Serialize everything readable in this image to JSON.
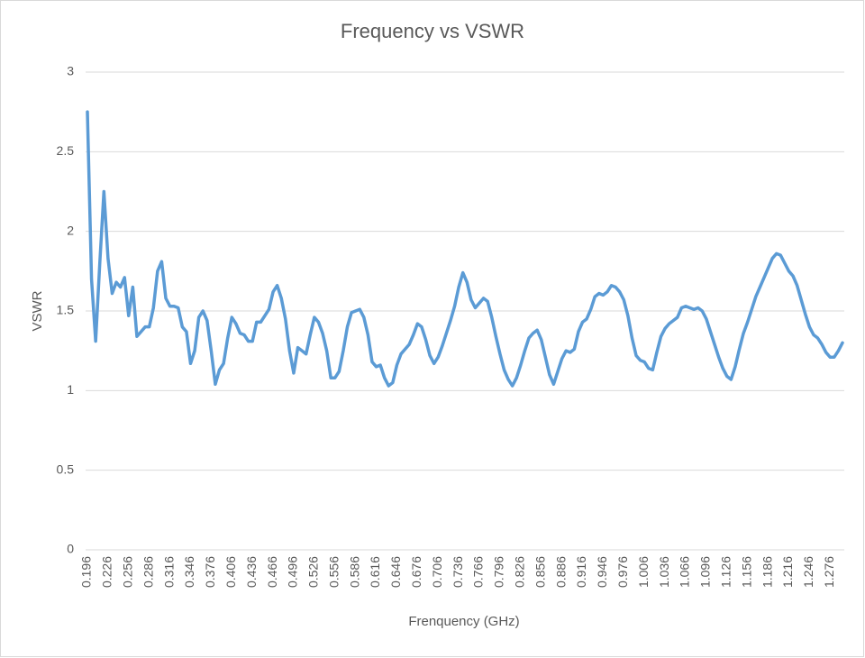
{
  "chart_data": {
    "type": "line",
    "title": "Frequency vs VSWR",
    "x_label": "Frenquency  (GHz)",
    "y_label": "VSWR",
    "categories": [
      "0.196",
      null,
      null,
      null,
      null,
      "0.226",
      null,
      null,
      null,
      null,
      "0.256",
      null,
      null,
      null,
      null,
      "0.286",
      null,
      null,
      null,
      null,
      "0.316",
      null,
      null,
      null,
      null,
      "0.346",
      null,
      null,
      null,
      null,
      "0.376",
      null,
      null,
      null,
      null,
      "0.406",
      null,
      null,
      null,
      null,
      "0.436",
      null,
      null,
      null,
      null,
      "0.466",
      null,
      null,
      null,
      null,
      "0.496",
      null,
      null,
      null,
      null,
      "0.526",
      null,
      null,
      null,
      null,
      "0.556",
      null,
      null,
      null,
      null,
      "0.586",
      null,
      null,
      null,
      null,
      "0.616",
      null,
      null,
      null,
      null,
      "0.646",
      null,
      null,
      null,
      null,
      "0.676",
      null,
      null,
      null,
      null,
      "0.706",
      null,
      null,
      null,
      null,
      "0.736",
      null,
      null,
      null,
      null,
      "0.766",
      null,
      null,
      null,
      null,
      "0.796",
      null,
      null,
      null,
      null,
      "0.826",
      null,
      null,
      null,
      null,
      "0.856",
      null,
      null,
      null,
      null,
      "0.886",
      null,
      null,
      null,
      null,
      "0.916",
      null,
      null,
      null,
      null,
      "0.946",
      null,
      null,
      null,
      null,
      "0.976",
      null,
      null,
      null,
      null,
      "1.006",
      null,
      null,
      null,
      null,
      "1.036",
      null,
      null,
      null,
      null,
      "1.066",
      null,
      null,
      null,
      null,
      "1.096",
      null,
      null,
      null,
      null,
      "1.126",
      null,
      null,
      null,
      null,
      "1.156",
      null,
      null,
      null,
      null,
      "1.186",
      null,
      null,
      null,
      null,
      "1.216",
      null,
      null,
      null,
      null,
      "1.246",
      null,
      null,
      null,
      null,
      "1.276",
      null,
      null,
      null
    ],
    "series": [
      {
        "name": "VSWR",
        "color": "#5b9bd5",
        "values": [
          2.75,
          1.7,
          1.31,
          1.8,
          2.25,
          1.83,
          1.61,
          1.68,
          1.65,
          1.71,
          1.47,
          1.65,
          1.34,
          1.37,
          1.4,
          1.4,
          1.52,
          1.75,
          1.81,
          1.58,
          1.53,
          1.53,
          1.52,
          1.4,
          1.37,
          1.17,
          1.25,
          1.46,
          1.5,
          1.44,
          1.25,
          1.04,
          1.13,
          1.17,
          1.33,
          1.46,
          1.42,
          1.36,
          1.35,
          1.31,
          1.31,
          1.43,
          1.43,
          1.47,
          1.51,
          1.62,
          1.66,
          1.58,
          1.45,
          1.25,
          1.11,
          1.27,
          1.25,
          1.23,
          1.35,
          1.46,
          1.43,
          1.36,
          1.25,
          1.08,
          1.08,
          1.12,
          1.25,
          1.4,
          1.49,
          1.5,
          1.51,
          1.46,
          1.35,
          1.18,
          1.15,
          1.16,
          1.08,
          1.03,
          1.05,
          1.16,
          1.23,
          1.26,
          1.29,
          1.35,
          1.42,
          1.4,
          1.32,
          1.22,
          1.17,
          1.21,
          1.28,
          1.36,
          1.44,
          1.53,
          1.65,
          1.74,
          1.68,
          1.57,
          1.52,
          1.55,
          1.58,
          1.56,
          1.46,
          1.34,
          1.23,
          1.13,
          1.07,
          1.03,
          1.08,
          1.16,
          1.25,
          1.33,
          1.36,
          1.38,
          1.32,
          1.21,
          1.1,
          1.04,
          1.12,
          1.2,
          1.25,
          1.24,
          1.26,
          1.37,
          1.43,
          1.45,
          1.51,
          1.59,
          1.61,
          1.6,
          1.62,
          1.66,
          1.65,
          1.62,
          1.57,
          1.47,
          1.33,
          1.22,
          1.19,
          1.18,
          1.14,
          1.13,
          1.24,
          1.34,
          1.39,
          1.42,
          1.44,
          1.46,
          1.52,
          1.53,
          1.52,
          1.51,
          1.52,
          1.5,
          1.45,
          1.37,
          1.29,
          1.21,
          1.14,
          1.09,
          1.07,
          1.15,
          1.26,
          1.36,
          1.43,
          1.51,
          1.59,
          1.65,
          1.71,
          1.77,
          1.83,
          1.86,
          1.85,
          1.8,
          1.75,
          1.72,
          1.66,
          1.57,
          1.48,
          1.4,
          1.35,
          1.33,
          1.29,
          1.24,
          1.21,
          1.21,
          1.25,
          1.3
        ]
      }
    ],
    "ylim": [
      0,
      3
    ],
    "yticks": [
      0,
      0.5,
      1,
      1.5,
      2,
      2.5,
      3
    ],
    "grid": true
  }
}
